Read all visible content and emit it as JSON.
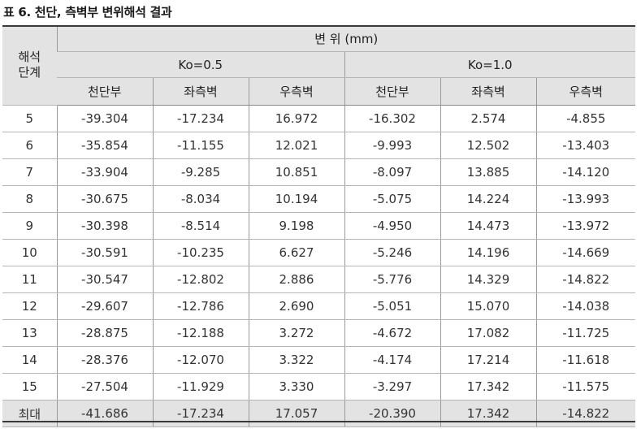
{
  "caption": "표 6. 천단, 측벽부 변위해석 결과",
  "header": {
    "stage_line1": "해석",
    "stage_line2": "단계",
    "displacement": "변 위 (mm)",
    "ko1": "Ko=0.5",
    "ko2": "Ko=1.0",
    "cols": [
      "천단부",
      "좌측벽",
      "우측벽",
      "천단부",
      "좌측벽",
      "우측벽"
    ]
  },
  "rows": [
    {
      "stage": "5",
      "values": [
        "-39.304",
        "-17.234",
        "16.972",
        "-16.302",
        "2.574",
        "-4.855"
      ]
    },
    {
      "stage": "6",
      "values": [
        "-35.854",
        "-11.155",
        "12.021",
        "-9.993",
        "12.502",
        "-13.403"
      ]
    },
    {
      "stage": "7",
      "values": [
        "-33.904",
        "-9.285",
        "10.851",
        "-8.097",
        "13.885",
        "-14.120"
      ]
    },
    {
      "stage": "8",
      "values": [
        "-30.675",
        "-8.034",
        "10.194",
        "-5.075",
        "14.224",
        "-13.993"
      ]
    },
    {
      "stage": "9",
      "values": [
        "-30.398",
        "-8.514",
        "9.198",
        "-4.950",
        "14.473",
        "-13.972"
      ]
    },
    {
      "stage": "10",
      "values": [
        "-30.591",
        "-10.235",
        "6.627",
        "-5.246",
        "14.196",
        "-14.669"
      ]
    },
    {
      "stage": "11",
      "values": [
        "-30.547",
        "-12.802",
        "2.886",
        "-5.776",
        "14.329",
        "-14.822"
      ]
    },
    {
      "stage": "12",
      "values": [
        "-29.607",
        "-12.786",
        "2.690",
        "-5.051",
        "15.070",
        "-14.038"
      ]
    },
    {
      "stage": "13",
      "values": [
        "-28.875",
        "-12.188",
        "3.272",
        "-4.672",
        "17.082",
        "-11.725"
      ]
    },
    {
      "stage": "14",
      "values": [
        "-28.376",
        "-12.070",
        "3.322",
        "-4.174",
        "17.214",
        "-11.618"
      ]
    },
    {
      "stage": "15",
      "values": [
        "-27.504",
        "-11.929",
        "3.330",
        "-3.297",
        "17.342",
        "-11.575"
      ]
    },
    {
      "stage": "최대",
      "values": [
        "-41.686",
        "-17.234",
        "17.057",
        "-20.390",
        "17.342",
        "-14.822"
      ]
    }
  ]
}
